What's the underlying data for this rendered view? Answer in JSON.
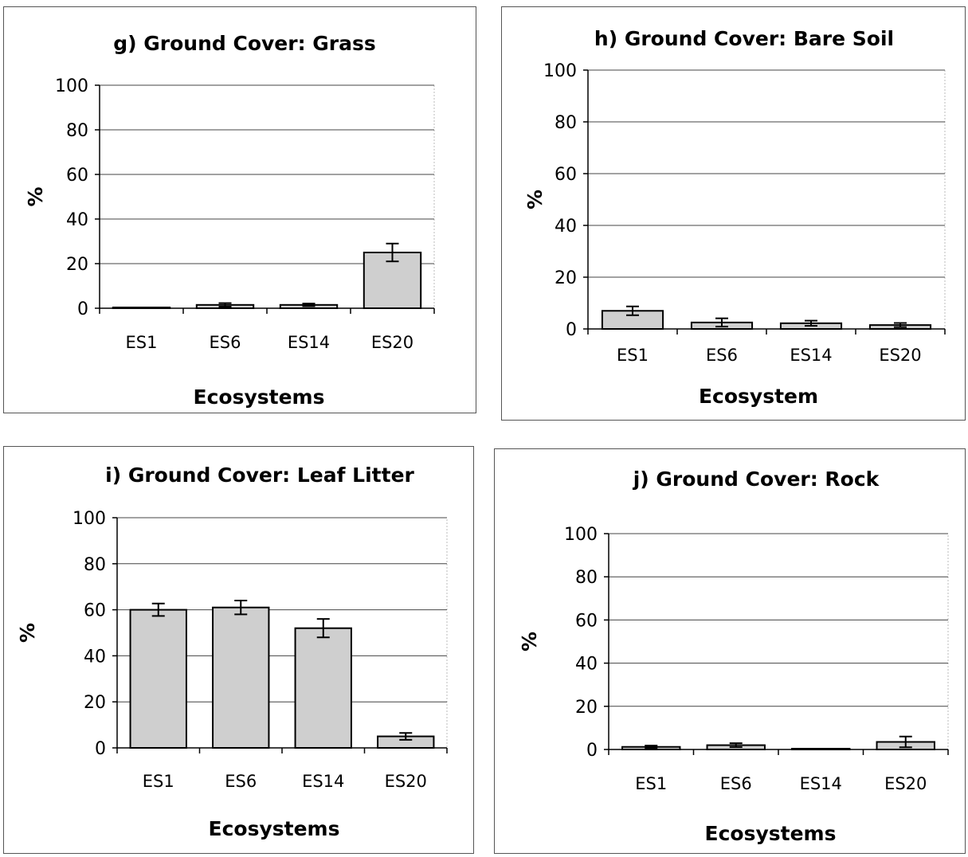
{
  "chart_data": [
    {
      "type": "bar",
      "title": "g) Ground Cover: Grass",
      "xlabel": "Ecosystems",
      "ylabel": "%",
      "ylim": [
        0,
        100
      ],
      "yticks": [
        "0",
        "20",
        "40",
        "60",
        "80",
        "100"
      ],
      "categories": [
        "ES1",
        "ES6",
        "ES14",
        "ES20"
      ],
      "values": [
        0,
        1.5,
        1.5,
        25
      ],
      "errors": [
        0.2,
        0.8,
        0.6,
        4
      ],
      "grid": true,
      "bar_color": "#cfcfcf"
    },
    {
      "type": "bar",
      "title": "h) Ground Cover: Bare Soil",
      "xlabel": "Ecosystem",
      "ylabel": "%",
      "ylim": [
        0,
        100
      ],
      "yticks": [
        "0",
        "20",
        "40",
        "60",
        "80",
        "100"
      ],
      "categories": [
        "ES1",
        "ES6",
        "ES14",
        "ES20"
      ],
      "values": [
        7,
        2.5,
        2.2,
        1.5
      ],
      "errors": [
        1.7,
        1.6,
        1,
        0.8
      ],
      "grid": true,
      "bar_color": "#cfcfcf"
    },
    {
      "type": "bar",
      "title": "i) Ground Cover: Leaf Litter",
      "xlabel": "Ecosystems",
      "ylabel": "%",
      "ylim": [
        0,
        100
      ],
      "yticks": [
        "0",
        "20",
        "40",
        "60",
        "80",
        "100"
      ],
      "categories": [
        "ES1",
        "ES6",
        "ES14",
        "ES20"
      ],
      "values": [
        60,
        61,
        52,
        5
      ],
      "errors": [
        2.7,
        3,
        4,
        1.5
      ],
      "grid": true,
      "bar_color": "#cfcfcf"
    },
    {
      "type": "bar",
      "title": "j) Ground Cover: Rock",
      "xlabel": "Ecosystems",
      "ylabel": "%",
      "ylim": [
        0,
        100
      ],
      "yticks": [
        "0",
        "20",
        "40",
        "60",
        "80",
        "100"
      ],
      "categories": [
        "ES1",
        "ES6",
        "ES14",
        "ES20"
      ],
      "values": [
        1.2,
        2,
        0,
        3.5
      ],
      "errors": [
        0.6,
        0.9,
        0.1,
        2.5
      ],
      "grid": true,
      "bar_color": "#cfcfcf"
    }
  ]
}
